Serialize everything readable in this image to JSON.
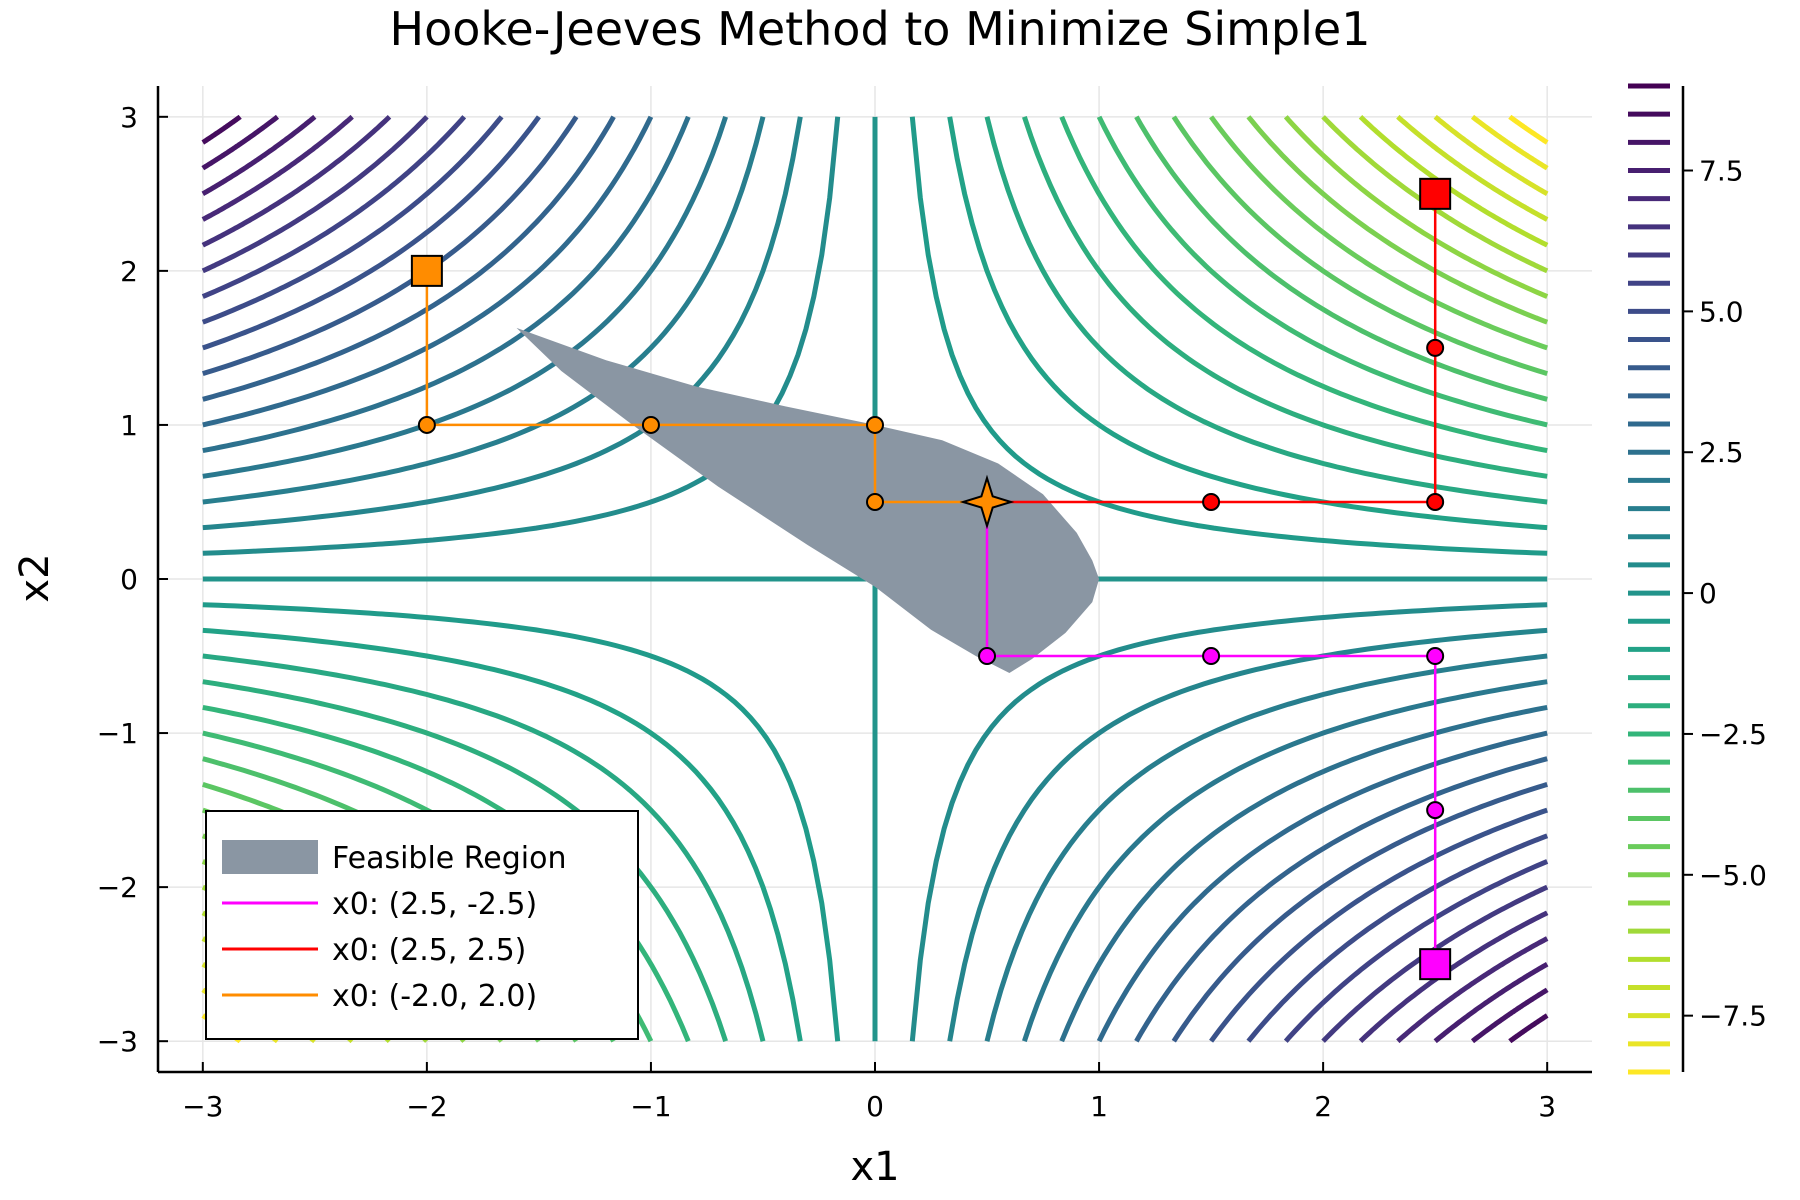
{
  "chart_data": {
    "type": "line",
    "title": "Hooke-Jeeves Method to Minimize Simple1",
    "xlabel": "x1",
    "ylabel": "x2",
    "xlim": [
      -3.2,
      3.2
    ],
    "ylim": [
      -3.2,
      3.2
    ],
    "xticks": [
      -3,
      -2,
      -1,
      0,
      1,
      2,
      3
    ],
    "yticks": [
      -3,
      -2,
      -1,
      0,
      1,
      2,
      3
    ],
    "xtick_labels": [
      "−3",
      "−2",
      "−1",
      "0",
      "1",
      "2",
      "3"
    ],
    "ytick_labels": [
      "−3",
      "−2",
      "−1",
      "0",
      "1",
      "2",
      "3"
    ],
    "grid": true,
    "contour": {
      "function": "f(x1, x2) = -x1 * x2",
      "levels_range": [
        -8.5,
        9.0
      ],
      "level_step": 0.5,
      "colormap": "viridis-reversed",
      "colorbar_ticks": [
        7.5,
        5.0,
        2.5,
        0,
        -2.5,
        -5.0,
        -7.5
      ],
      "colorbar_tick_labels": [
        "7.5",
        "5.0",
        "2.5",
        "0",
        "−2.5",
        "−5.0",
        "−7.5"
      ],
      "colorbar_range": [
        -8.5,
        9.0
      ]
    },
    "feasible_region": {
      "name": "Feasible Region",
      "color": "#8a96a3",
      "polygon": [
        [
          -1.6,
          1.63
        ],
        [
          -1.2,
          1.42
        ],
        [
          -0.8,
          1.25
        ],
        [
          -0.4,
          1.12
        ],
        [
          0.0,
          1.0
        ],
        [
          0.3,
          0.9
        ],
        [
          0.55,
          0.75
        ],
        [
          0.75,
          0.55
        ],
        [
          0.9,
          0.3
        ],
        [
          0.97,
          0.12
        ],
        [
          1.0,
          0.0
        ],
        [
          0.97,
          -0.15
        ],
        [
          0.85,
          -0.35
        ],
        [
          0.7,
          -0.52
        ],
        [
          0.6,
          -0.61
        ],
        [
          0.45,
          -0.5
        ],
        [
          0.25,
          -0.33
        ],
        [
          0.0,
          -0.05
        ],
        [
          -0.3,
          0.22
        ],
        [
          -0.7,
          0.6
        ],
        [
          -1.1,
          1.02
        ],
        [
          -1.4,
          1.35
        ]
      ]
    },
    "optimum": {
      "x": 0.5,
      "y": 0.5,
      "color": "#ff8c00"
    },
    "legend_position": "bottom-left",
    "series": [
      {
        "name": "x0: (2.5, -2.5)",
        "color": "#ff00ff",
        "x": [
          2.5,
          2.5,
          2.5,
          1.5,
          0.5,
          0.5
        ],
        "y": [
          -2.5,
          -1.5,
          -0.5,
          -0.5,
          -0.5,
          0.5
        ]
      },
      {
        "name": "x0: (2.5, 2.5)",
        "color": "#ff0000",
        "x": [
          2.5,
          2.5,
          2.5,
          1.5,
          0.5
        ],
        "y": [
          2.5,
          1.5,
          0.5,
          0.5,
          0.5
        ]
      },
      {
        "name": "x0: (-2.0, 2.0)",
        "color": "#ff8c00",
        "x": [
          -2.0,
          -2.0,
          -1.0,
          0.0,
          0.0,
          0.5
        ],
        "y": [
          2.0,
          1.0,
          1.0,
          1.0,
          0.5,
          0.5
        ]
      }
    ]
  }
}
